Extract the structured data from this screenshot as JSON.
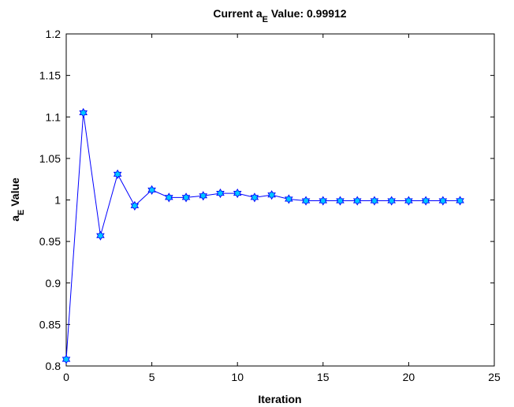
{
  "chart_data": {
    "type": "line",
    "title": {
      "prefix": "Current a",
      "sub": "E",
      "suffix": " Value: 0.99912"
    },
    "xlabel": "Iteration",
    "ylabel": {
      "prefix": "a",
      "sub": "E",
      "suffix": " Value"
    },
    "xlim": [
      0,
      25
    ],
    "ylim": [
      0.8,
      1.2
    ],
    "xticks": [
      0,
      5,
      10,
      15,
      20,
      25
    ],
    "yticks": [
      0.8,
      0.85,
      0.9,
      0.95,
      1,
      1.05,
      1.1,
      1.15,
      1.2
    ],
    "grid": false,
    "series": [
      {
        "x": [
          0,
          1,
          2,
          3,
          4,
          5,
          6,
          7,
          8,
          9,
          10,
          11,
          12,
          13,
          14,
          15,
          16,
          17,
          18,
          19,
          20,
          21,
          22,
          23
        ],
        "values": [
          0.808,
          1.105,
          0.957,
          1.031,
          0.993,
          1.012,
          1.003,
          1.003,
          1.005,
          1.008,
          1.008,
          1.003,
          1.006,
          1.001,
          0.999,
          0.999,
          0.999,
          0.999,
          0.999,
          0.999,
          0.999,
          0.999,
          0.999,
          0.99912
        ]
      }
    ],
    "colors": {
      "line": "#0000ff",
      "marker_fill": "#00c8ff",
      "marker_edge": "#0000ff",
      "axes": "#000000"
    },
    "marker": "hexagram"
  }
}
